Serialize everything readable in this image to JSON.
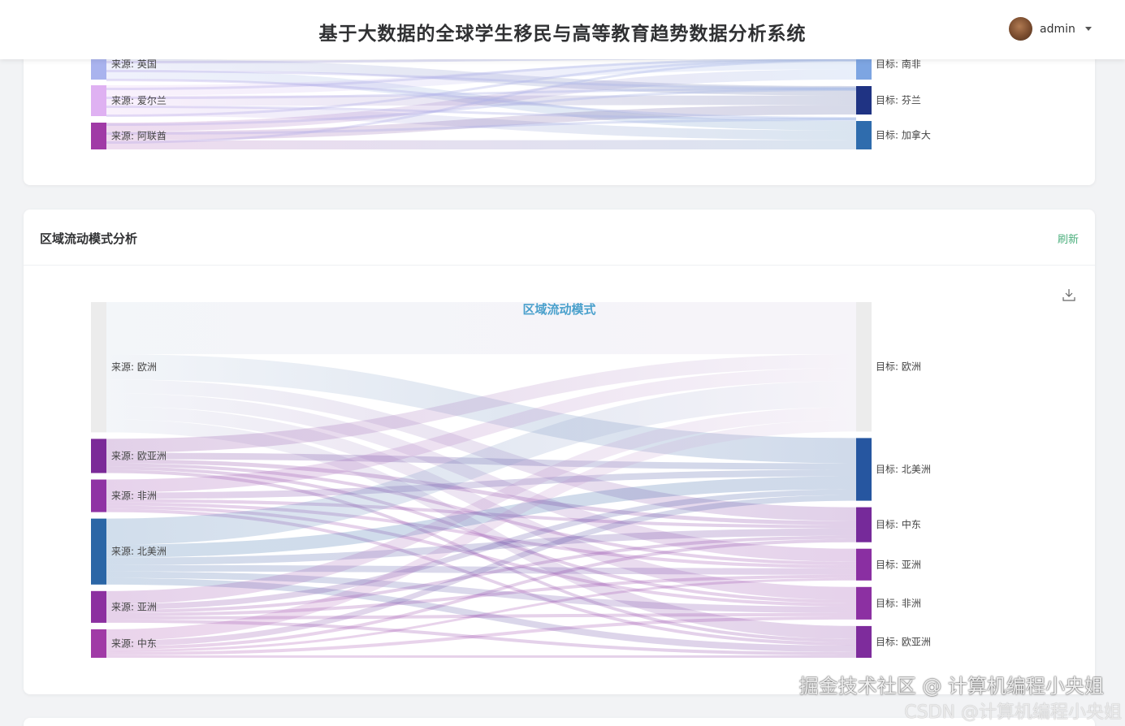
{
  "header": {
    "title": "基于大数据的全球学生移民与高等教育趋势数据分析系统",
    "user": "admin",
    "icons": [
      "avatar",
      "caret-down-icon"
    ]
  },
  "top_card": {
    "chart_data": {
      "type": "sankey",
      "sources": [
        {
          "name": "来源: 英国",
          "color": "#a9b3ee"
        },
        {
          "name": "来源: 爱尔兰",
          "color": "#dfb1f2"
        },
        {
          "name": "来源: 阿联酋",
          "color": "#a03aa6"
        }
      ],
      "targets": [
        {
          "name": "目标: 南非",
          "color": "#7da5e2"
        },
        {
          "name": "目标: 芬兰",
          "color": "#1f3383"
        },
        {
          "name": "目标: 加拿大",
          "color": "#2f6cad"
        }
      ]
    }
  },
  "region_card": {
    "title": "区域流动模式分析",
    "refresh": "刷新",
    "download_icon": "download-icon",
    "chart_data": {
      "type": "sankey",
      "title": "区域流动模式",
      "sources": [
        {
          "name": "来源: 欧洲",
          "color": "#ececec"
        },
        {
          "name": "来源: 欧亚洲",
          "color": "#7b2a98"
        },
        {
          "name": "来源: 非洲",
          "color": "#8f33a4"
        },
        {
          "name": "来源: 北美洲",
          "color": "#2b66a6"
        },
        {
          "name": "来源: 亚洲",
          "color": "#8c30a0"
        },
        {
          "name": "来源: 中东",
          "color": "#a03aa6"
        }
      ],
      "targets": [
        {
          "name": "目标: 欧洲",
          "color": "#ececec"
        },
        {
          "name": "目标: 北美洲",
          "color": "#2656a0"
        },
        {
          "name": "目标: 中东",
          "color": "#762a9a"
        },
        {
          "name": "目标: 亚洲",
          "color": "#8a2fa2"
        },
        {
          "name": "目标: 非洲",
          "color": "#8c30a2"
        },
        {
          "name": "目标: 欧亚洲",
          "color": "#7e2c9c"
        }
      ],
      "links": [
        [
          64,
          31,
          17,
          16,
          16,
          16
        ],
        [
          17,
          8,
          5,
          4,
          4,
          4
        ],
        [
          16,
          8,
          4,
          4,
          4,
          4
        ],
        [
          32,
          16,
          9,
          8,
          8,
          8
        ],
        [
          16,
          7,
          4,
          4,
          4,
          4
        ],
        [
          14,
          7,
          4,
          3,
          4,
          3
        ]
      ]
    }
  },
  "watermark": {
    "line1": "掘金技术社区 @ 计算机编程小央姐",
    "line2": "CSDN @计算机编程小央姐"
  }
}
